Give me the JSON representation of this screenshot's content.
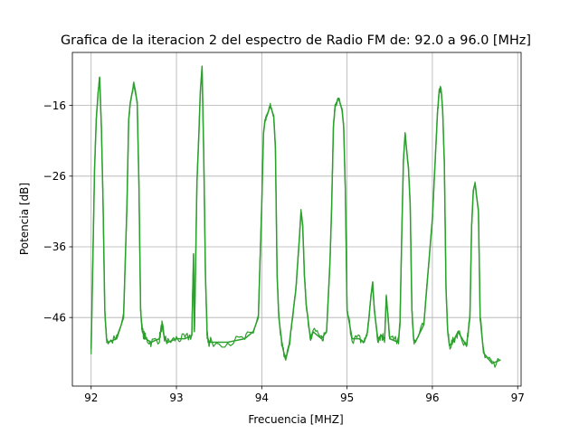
{
  "chart_data": {
    "type": "line",
    "title": "Grafica de la iteracion 2 del espectro de Radio FM de: 92.0 a 96.0 [MHz]",
    "xlabel": "Frecuencia [MHZ]",
    "ylabel": "Potencia [dB]",
    "xlim": [
      91.78,
      97.04
    ],
    "ylim": [
      -55.7,
      -8.5
    ],
    "xticks": [
      92,
      93,
      94,
      95,
      96,
      97
    ],
    "xtick_labels": [
      "92",
      "93",
      "94",
      "95",
      "96",
      "97"
    ],
    "yticks": [
      -46,
      -36,
      -26,
      -16
    ],
    "ytick_labels": [
      "−46",
      "−36",
      "−26",
      "−16"
    ],
    "grid": true,
    "series": [
      {
        "color": "#2ca02c",
        "x": [
          92.0,
          92.02,
          92.04,
          92.06,
          92.08,
          92.1,
          92.12,
          92.14,
          92.16,
          92.18,
          92.2,
          92.3,
          92.38,
          92.42,
          92.44,
          92.46,
          92.5,
          92.54,
          92.56,
          92.58,
          92.6,
          92.64,
          92.7,
          92.8,
          92.83,
          92.86,
          92.9,
          93.0,
          93.1,
          93.18,
          93.2,
          93.21,
          93.22,
          93.24,
          93.26,
          93.28,
          93.3,
          93.32,
          93.34,
          93.36,
          93.38,
          93.4,
          93.6,
          93.8,
          93.9,
          93.96,
          94.0,
          94.02,
          94.04,
          94.06,
          94.1,
          94.14,
          94.16,
          94.18,
          94.2,
          94.24,
          94.28,
          94.32,
          94.36,
          94.4,
          94.44,
          94.46,
          94.48,
          94.5,
          94.52,
          94.56,
          94.58,
          94.6,
          94.7,
          94.76,
          94.8,
          94.82,
          94.84,
          94.86,
          94.9,
          94.94,
          94.96,
          94.98,
          95.0,
          95.06,
          95.14,
          95.2,
          95.24,
          95.28,
          95.3,
          95.32,
          95.36,
          95.4,
          95.44,
          95.46,
          95.5,
          95.6,
          95.62,
          95.64,
          95.66,
          95.68,
          95.7,
          95.72,
          95.74,
          95.76,
          95.78,
          95.8,
          95.9,
          96.0,
          96.04,
          96.06,
          96.08,
          96.1,
          96.12,
          96.14,
          96.16,
          96.18,
          96.2,
          96.24,
          96.3,
          96.4,
          96.44,
          96.46,
          96.48,
          96.5,
          96.52,
          96.54,
          96.56,
          96.6,
          96.7,
          96.8
        ],
        "y": [
          -50.5,
          -38,
          -25,
          -18,
          -14.5,
          -12,
          -19,
          -30,
          -45,
          -49,
          -49.5,
          -49,
          -46,
          -30,
          -18,
          -15.5,
          -13,
          -15.5,
          -27,
          -45,
          -48,
          -49,
          -49.5,
          -49,
          -47,
          -49,
          -49.5,
          -49,
          -49,
          -48.5,
          -37,
          -48,
          -42,
          -27,
          -21,
          -14,
          -10.5,
          -23,
          -40,
          -48.5,
          -49.5,
          -49.5,
          -49.5,
          -49,
          -48,
          -46,
          -30,
          -20,
          -18,
          -17.5,
          -16,
          -17.5,
          -22,
          -40,
          -46,
          -50,
          -52,
          -50,
          -46,
          -42,
          -35,
          -31,
          -33,
          -40,
          -44,
          -48,
          -49,
          -48,
          -49,
          -48,
          -38,
          -30,
          -19,
          -16,
          -15,
          -16.5,
          -19,
          -28,
          -45,
          -49,
          -49,
          -49.5,
          -48,
          -43,
          -41,
          -45,
          -49,
          -48.5,
          -49,
          -43,
          -49,
          -49.5,
          -47,
          -35,
          -24,
          -20,
          -22.5,
          -25,
          -30,
          -45,
          -49,
          -49.5,
          -47,
          -32,
          -22,
          -17,
          -14,
          -13.5,
          -16.5,
          -24,
          -42,
          -48,
          -50,
          -49.5,
          -48,
          -50,
          -46,
          -33,
          -28,
          -27,
          -29,
          -31,
          -46,
          -51,
          -52.5,
          -52
        ]
      }
    ]
  }
}
